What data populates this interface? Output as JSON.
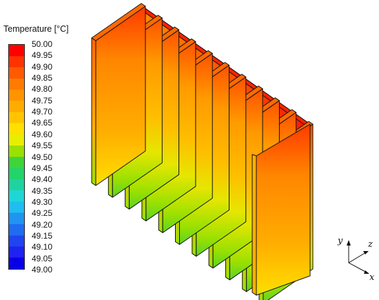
{
  "legend": {
    "title": "Temperature [°C]",
    "values": [
      "50.00",
      "49.95",
      "49.90",
      "49.85",
      "49.80",
      "49.75",
      "49.70",
      "49.65",
      "49.60",
      "49.55",
      "49.50",
      "49.45",
      "49.40",
      "49.35",
      "49.30",
      "49.25",
      "49.20",
      "49.15",
      "49.10",
      "49.05",
      "49.00"
    ],
    "colors_top_to_bottom": [
      "#ff0000",
      "#ff3300",
      "#ff5a00",
      "#ff7a00",
      "#ff9400",
      "#ffab00",
      "#ffc400",
      "#ffe000",
      "#e8ee00",
      "#9be000",
      "#3ed43a",
      "#22d46a",
      "#1fd3a0",
      "#1fd6d6",
      "#1fbef0",
      "#1f94f0",
      "#1f6cf0",
      "#1f44f0",
      "#1f22f0",
      "#0a00e8"
    ]
  },
  "axes": {
    "y": "y",
    "z": "z",
    "x": "x"
  },
  "colors": {
    "hot": "#ff1a00",
    "warm": "#ffa000",
    "cool": "#4fd02a",
    "edge": "#111111"
  }
}
